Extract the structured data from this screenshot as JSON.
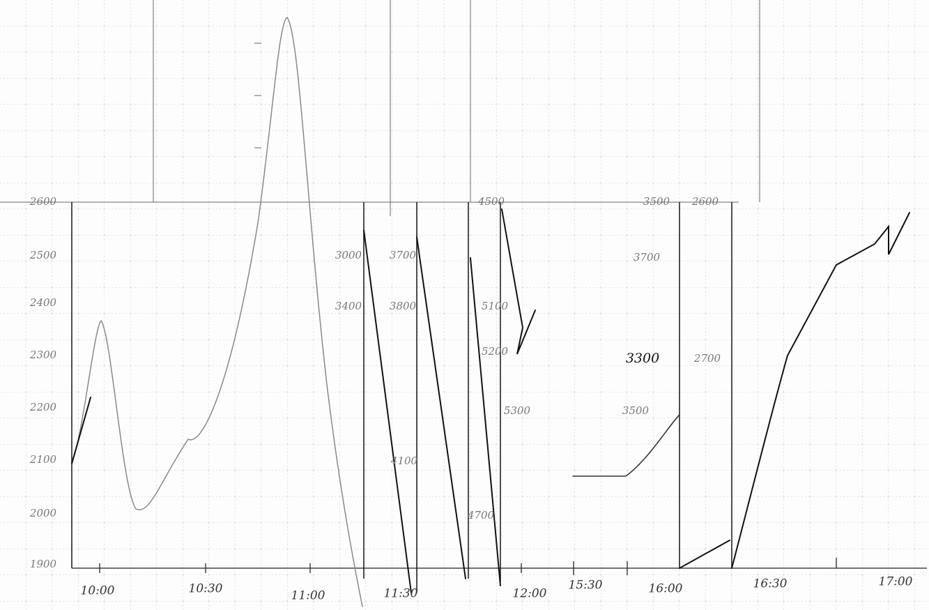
{
  "left_axis_labels": [
    "2600",
    "2500",
    "2400",
    "2300",
    "2200",
    "2100",
    "2000",
    "1900"
  ],
  "middle_axis_labels": [
    "3000",
    "3400",
    "3700",
    "3800",
    "4500",
    "5100",
    "5200",
    "5300",
    "4100",
    "4700"
  ],
  "right_axis_labels": [
    "3500",
    "2600",
    "3700",
    "3300",
    "3500",
    "2700"
  ],
  "time_labels": [
    "10:00",
    "10:30",
    "11:00",
    "11:30",
    "12:00",
    "15:30",
    "16:00",
    "16:30",
    "17:00"
  ]
}
